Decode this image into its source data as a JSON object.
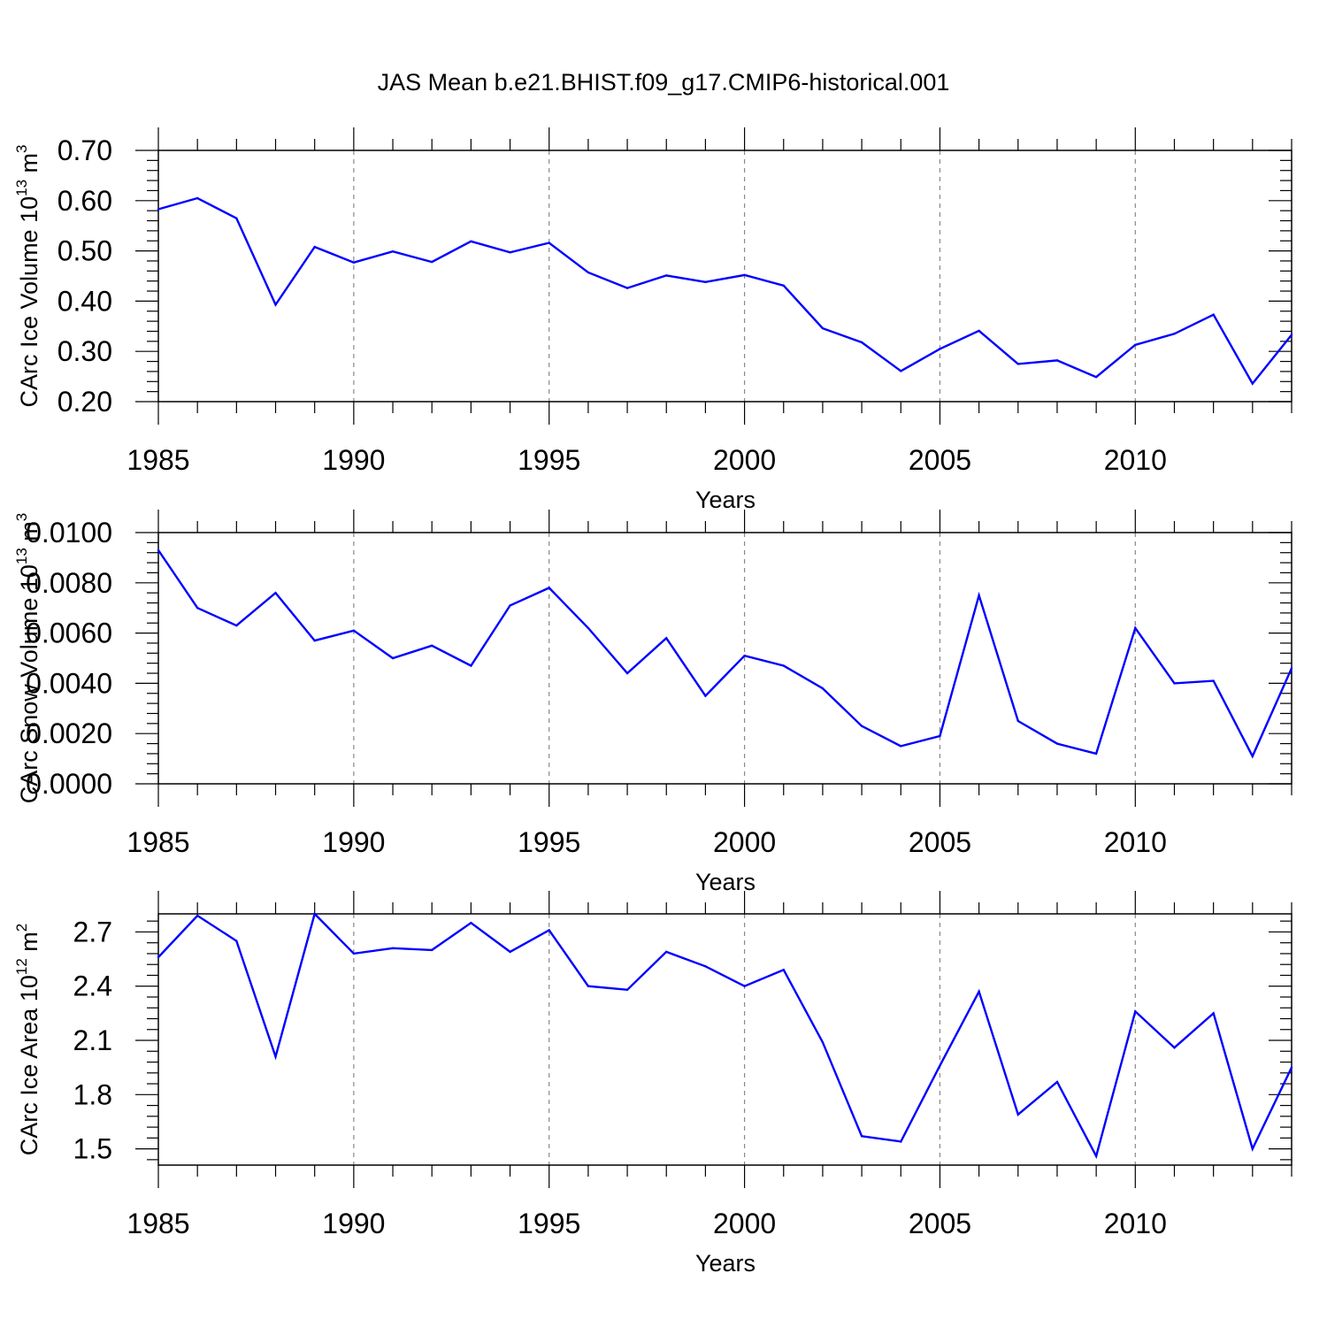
{
  "title": "JAS Mean b.e21.BHIST.f09_g17.CMIP6-historical.001",
  "colors": {
    "series": "#0000ff",
    "frame": "#000000",
    "grid": "#888888"
  },
  "chart_data": [
    {
      "type": "line",
      "title": "JAS Mean b.e21.BHIST.f09_g17.CMIP6-historical.001",
      "xlabel": "Years",
      "ylabel": {
        "text": "CArc Ice Volume 10",
        "exp": "13",
        "unit": " m",
        "unit_exp": "3"
      },
      "xlim": [
        1985,
        2014
      ],
      "ylim": [
        0.2,
        0.7
      ],
      "xticks": [
        1985,
        1990,
        1995,
        2000,
        2005,
        2010
      ],
      "yticks": [
        "0.20",
        "0.30",
        "0.40",
        "0.50",
        "0.60",
        "0.70"
      ],
      "ytick_values": [
        0.2,
        0.3,
        0.4,
        0.5,
        0.6,
        0.7
      ],
      "grid": "dashed vertical lines at major x ticks",
      "x": [
        1985,
        1986,
        1987,
        1988,
        1989,
        1990,
        1991,
        1992,
        1993,
        1994,
        1995,
        1996,
        1997,
        1998,
        1999,
        2000,
        2001,
        2002,
        2003,
        2004,
        2005,
        2006,
        2007,
        2008,
        2009,
        2010,
        2011,
        2012,
        2013,
        2014
      ],
      "y": [
        0.583,
        0.605,
        0.565,
        0.393,
        0.508,
        0.477,
        0.499,
        0.478,
        0.519,
        0.497,
        0.516,
        0.457,
        0.426,
        0.451,
        0.438,
        0.452,
        0.431,
        0.346,
        0.318,
        0.261,
        0.305,
        0.341,
        0.275,
        0.282,
        0.249,
        0.313,
        0.335,
        0.373,
        0.236,
        0.333
      ]
    },
    {
      "type": "line",
      "xlabel": "Years",
      "ylabel": {
        "text": "CArc Snow Volume 10",
        "exp": "13",
        "unit": " m",
        "unit_exp": "3"
      },
      "xlim": [
        1985,
        2014
      ],
      "ylim": [
        0.0,
        0.01
      ],
      "xticks": [
        1985,
        1990,
        1995,
        2000,
        2005,
        2010
      ],
      "yticks": [
        "0.0000",
        "0.0020",
        "0.0040",
        "0.0060",
        "0.0080",
        "0.0100"
      ],
      "ytick_values": [
        0.0,
        0.002,
        0.004,
        0.006,
        0.008,
        0.01
      ],
      "grid": "dashed vertical lines at major x ticks",
      "x": [
        1985,
        1986,
        1987,
        1988,
        1989,
        1990,
        1991,
        1992,
        1993,
        1994,
        1995,
        1996,
        1997,
        1998,
        1999,
        2000,
        2001,
        2002,
        2003,
        2004,
        2005,
        2006,
        2007,
        2008,
        2009,
        2010,
        2011,
        2012,
        2013,
        2014
      ],
      "y": [
        0.0093,
        0.007,
        0.0063,
        0.0076,
        0.0057,
        0.0061,
        0.005,
        0.0055,
        0.0047,
        0.0071,
        0.0078,
        0.0062,
        0.0044,
        0.0058,
        0.0035,
        0.0051,
        0.0047,
        0.0038,
        0.0023,
        0.0015,
        0.0019,
        0.0075,
        0.0025,
        0.0016,
        0.0012,
        0.0062,
        0.004,
        0.0041,
        0.0011,
        0.0046
      ]
    },
    {
      "type": "line",
      "xlabel": "Years",
      "ylabel": {
        "text": "CArc Ice Area 10",
        "exp": "12",
        "unit": " m",
        "unit_exp": "2"
      },
      "xlim": [
        1985,
        2014
      ],
      "ylim": [
        1.41,
        2.8
      ],
      "xticks": [
        1985,
        1990,
        1995,
        2000,
        2005,
        2010
      ],
      "yticks": [
        "1.5",
        "1.8",
        "2.1",
        "2.4",
        "2.7"
      ],
      "ytick_values": [
        1.5,
        1.8,
        2.1,
        2.4,
        2.7
      ],
      "grid": "dashed vertical lines at major x ticks",
      "x": [
        1985,
        1986,
        1987,
        1988,
        1989,
        1990,
        1991,
        1992,
        1993,
        1994,
        1995,
        1996,
        1997,
        1998,
        1999,
        2000,
        2001,
        2002,
        2003,
        2004,
        2005,
        2006,
        2007,
        2008,
        2009,
        2010,
        2011,
        2012,
        2013,
        2014
      ],
      "y": [
        2.56,
        2.79,
        2.65,
        2.01,
        2.8,
        2.58,
        2.61,
        2.6,
        2.75,
        2.59,
        2.71,
        2.4,
        2.38,
        2.59,
        2.51,
        2.4,
        2.49,
        2.09,
        1.57,
        1.54,
        1.96,
        2.37,
        1.69,
        1.87,
        1.46,
        2.26,
        2.06,
        2.25,
        1.5,
        1.95
      ]
    }
  ]
}
